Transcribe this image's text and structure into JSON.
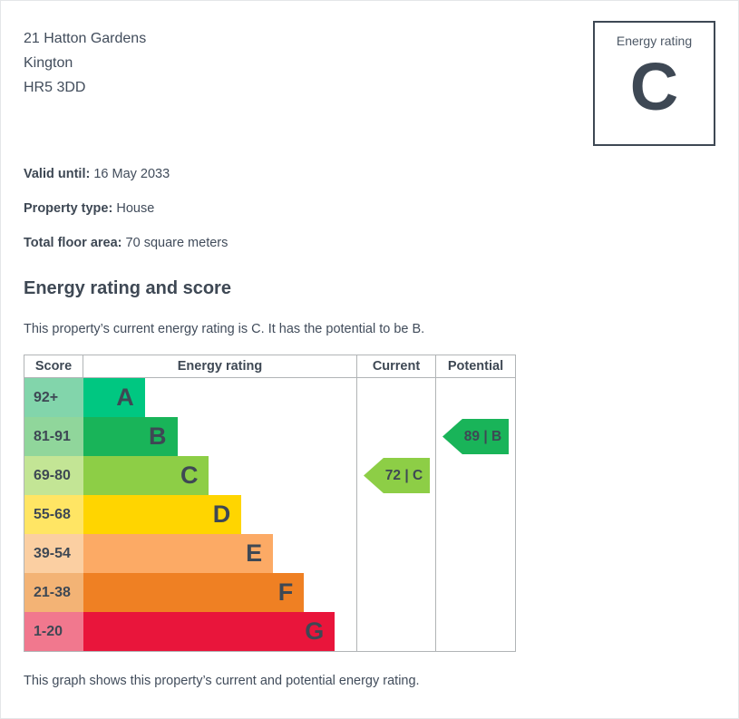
{
  "address": {
    "line1": "21 Hatton Gardens",
    "line2": "Kington",
    "line3": "HR5 3DD"
  },
  "rating_box": {
    "label": "Energy rating",
    "value": "C"
  },
  "meta": [
    {
      "label": "Valid until:",
      "value": "16 May 2033"
    },
    {
      "label": "Property type:",
      "value": "House"
    },
    {
      "label": "Total floor area:",
      "value": "70 square meters"
    }
  ],
  "section": {
    "title": "Energy rating and score",
    "description": "This property’s current energy rating is C. It has the potential to be B."
  },
  "footer": {
    "caption": "This graph shows this property’s current and potential energy rating."
  },
  "chart_data": {
    "type": "bar",
    "title": "Energy rating and score",
    "headers": [
      "Score",
      "Energy rating",
      "Current",
      "Potential"
    ],
    "legend_position": "none",
    "grid": false,
    "bands": [
      {
        "letter": "A",
        "score_range": "92+",
        "color": "#00c781",
        "score_bg": "#82d5ab",
        "bar_pct": 22.5
      },
      {
        "letter": "B",
        "score_range": "81-91",
        "color": "#19b459",
        "score_bg": "#90d69b",
        "bar_pct": 34.4
      },
      {
        "letter": "C",
        "score_range": "69-80",
        "color": "#8dce46",
        "score_bg": "#c3e595",
        "bar_pct": 46.0
      },
      {
        "letter": "D",
        "score_range": "55-68",
        "color": "#ffd500",
        "score_bg": "#ffe564",
        "bar_pct": 57.9
      },
      {
        "letter": "E",
        "score_range": "39-54",
        "color": "#fcaa65",
        "score_bg": "#fbcfa2",
        "bar_pct": 69.5
      },
      {
        "letter": "F",
        "score_range": "21-38",
        "color": "#ef8023",
        "score_bg": "#f3b375",
        "bar_pct": 80.8
      },
      {
        "letter": "G",
        "score_range": "1-20",
        "color": "#e9153b",
        "score_bg": "#f1788e",
        "bar_pct": 92.1
      }
    ],
    "current": {
      "value": 72,
      "band": "C",
      "label": "72 | C",
      "band_index": 2,
      "color": "#8dce46"
    },
    "potential": {
      "value": 89,
      "band": "B",
      "label": "89 | B",
      "band_index": 1,
      "color": "#19b459"
    }
  }
}
